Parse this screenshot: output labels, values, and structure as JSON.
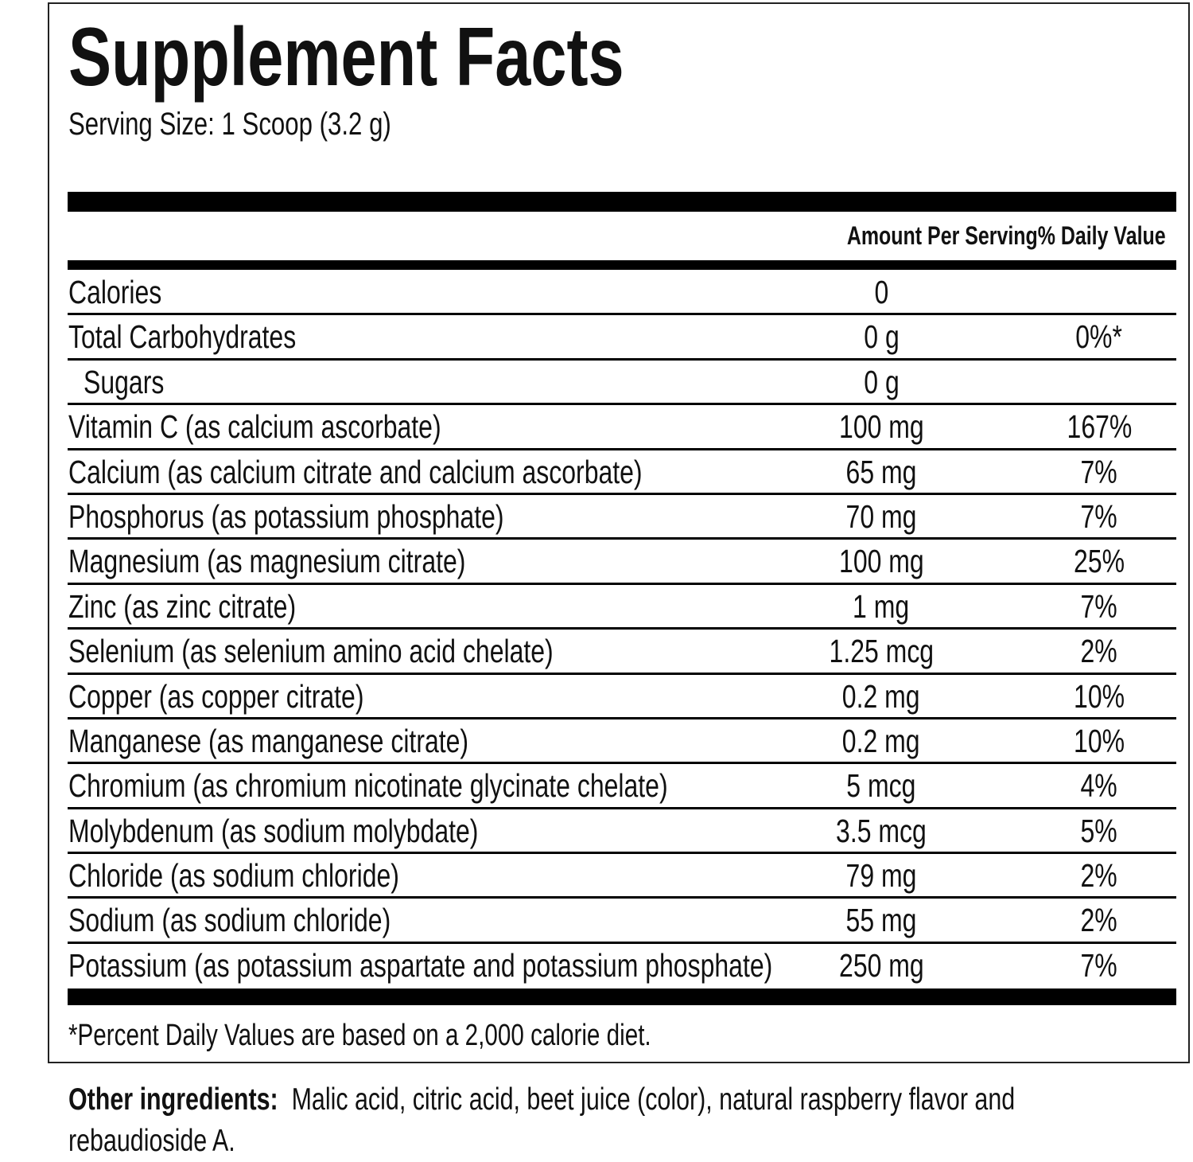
{
  "title": "Supplement Facts",
  "serving_size": "Serving Size: 1 Scoop (3.2 g)",
  "header": {
    "amount": "Amount Per Serving",
    "dv": "% Daily Value"
  },
  "rows": [
    {
      "name": "Calories",
      "amount": "0",
      "dv": ""
    },
    {
      "name": "Total Carbohydrates",
      "amount": "0 g",
      "dv": "0%*"
    },
    {
      "name": "Sugars",
      "amount": "0 g",
      "dv": ""
    },
    {
      "name": "Vitamin C (as calcium ascorbate)",
      "amount": "100 mg",
      "dv": "167%"
    },
    {
      "name": "Calcium (as calcium citrate and calcium ascorbate)",
      "amount": "65 mg",
      "dv": "7%"
    },
    {
      "name": "Phosphorus (as potassium phosphate)",
      "amount": "70 mg",
      "dv": "7%"
    },
    {
      "name": "Magnesium (as magnesium citrate)",
      "amount": "100 mg",
      "dv": "25%"
    },
    {
      "name": "Zinc (as zinc citrate)",
      "amount": "1 mg",
      "dv": "7%"
    },
    {
      "name": "Selenium (as selenium amino acid chelate)",
      "amount": "1.25 mcg",
      "dv": "2%"
    },
    {
      "name": "Copper (as copper citrate)",
      "amount": "0.2 mg",
      "dv": "10%"
    },
    {
      "name": "Manganese (as manganese citrate)",
      "amount": "0.2 mg",
      "dv": "10%"
    },
    {
      "name": "Chromium (as chromium nicotinate glycinate chelate)",
      "amount": "5 mcg",
      "dv": "4%"
    },
    {
      "name": "Molybdenum (as sodium molybdate)",
      "amount": "3.5 mcg",
      "dv": "5%"
    },
    {
      "name": "Chloride (as sodium chloride)",
      "amount": "79 mg",
      "dv": "2%"
    },
    {
      "name": "Sodium (as sodium chloride)",
      "amount": "55 mg",
      "dv": "2%"
    },
    {
      "name": "Potassium (as potassium aspartate and potassium phosphate)",
      "amount": "250 mg",
      "dv": "7%"
    }
  ],
  "footnote": "*Percent Daily Values are based on a 2,000 calorie diet.",
  "other_ingredients": {
    "label": "Other ingredients:",
    "text_line1": "Malic acid, citric acid, beet juice (color), natural raspberry flavor and",
    "text_line2": "rebaudioside A."
  }
}
